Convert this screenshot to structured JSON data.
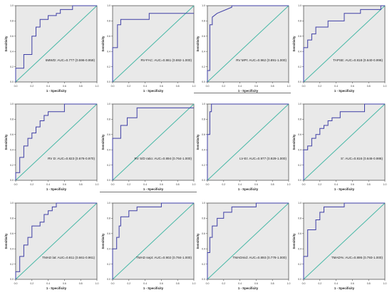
{
  "figure": {
    "x_axis_label": "1 - Specificity",
    "y_axis_label": "Sensitivity",
    "tick_labels": [
      "0.0",
      "0.2",
      "0.4",
      "0.6",
      "0.8",
      "1.0"
    ],
    "panel_background": "#e9e9e9",
    "roc_color": "#3f3fa6",
    "reference_color": "#47b8a6"
  },
  "chart_data": [
    {
      "type": "line",
      "label": "6MWD: AUC=0.777 (0.596-0.959)",
      "xlabel": "1 - Specificity",
      "ylabel": "Sensitivity",
      "xlim": [
        0,
        1
      ],
      "ylim": [
        0,
        1
      ],
      "reference_line": "diagonal",
      "series": [
        {
          "x": [
            0,
            0,
            0.1,
            0.1,
            0.2,
            0.2,
            0.25,
            0.25,
            0.3,
            0.3,
            0.4,
            0.4,
            0.5,
            0.5,
            0.55,
            0.55,
            0.7,
            0.7,
            0.9,
            0.95,
            1
          ],
          "y": [
            0,
            0.18,
            0.18,
            0.36,
            0.36,
            0.6,
            0.6,
            0.72,
            0.72,
            0.82,
            0.82,
            0.87,
            0.87,
            0.9,
            0.9,
            0.95,
            0.95,
            1,
            1,
            1,
            1
          ]
        }
      ]
    },
    {
      "type": "line",
      "label": "RV-FAC: AUC=0.861 (0.692-1.000)",
      "xlabel": "1 - Specificity",
      "ylabel": "Sensitivity",
      "xlim": [
        0,
        1
      ],
      "ylim": [
        0,
        1
      ],
      "reference_line": "diagonal",
      "series": [
        {
          "x": [
            0,
            0,
            0.06,
            0.06,
            0.1,
            0.1,
            0.45,
            0.45,
            1
          ],
          "y": [
            0,
            0.45,
            0.45,
            0.75,
            0.75,
            0.82,
            0.82,
            0.9,
            0.9
          ]
        }
      ]
    },
    {
      "type": "line",
      "label": "RV MPI: AUC=0.962 (0.891-1.000)",
      "xlabel": "1 - Specificity",
      "ylabel": "Sensitivity",
      "xlim": [
        0,
        1
      ],
      "ylim": [
        0,
        1
      ],
      "reference_line": "diagonal",
      "series": [
        {
          "x": [
            0,
            0,
            0.03,
            0.03,
            0.06,
            0.06,
            0.12,
            0.3,
            0.3,
            1
          ],
          "y": [
            0,
            0.15,
            0.15,
            0.75,
            0.75,
            0.85,
            0.9,
            0.98,
            1,
            1
          ]
        }
      ]
    },
    {
      "type": "line",
      "label": "TAPSE: AUC=0.818 (0.640-0.996)",
      "xlabel": "1 - Specificity",
      "ylabel": "Sensitivity",
      "xlim": [
        0,
        1
      ],
      "ylim": [
        0,
        1
      ],
      "reference_line": "diagonal",
      "series": [
        {
          "x": [
            0,
            0,
            0.05,
            0.05,
            0.1,
            0.1,
            0.15,
            0.15,
            0.3,
            0.3,
            0.5,
            0.5,
            0.7,
            0.7,
            0.95,
            0.95,
            1
          ],
          "y": [
            0,
            0.45,
            0.45,
            0.55,
            0.55,
            0.63,
            0.63,
            0.72,
            0.72,
            0.8,
            0.8,
            0.9,
            0.9,
            0.95,
            0.95,
            1,
            1
          ]
        }
      ]
    },
    {
      "type": "line",
      "label": "RV D: AUC=0.823 (0.676-0.970)",
      "xlabel": "1 - Specificity",
      "ylabel": "Sensitivity",
      "xlim": [
        0,
        1
      ],
      "ylim": [
        0,
        1
      ],
      "reference_line": "diagonal",
      "series": [
        {
          "x": [
            0,
            0,
            0.05,
            0.05,
            0.1,
            0.1,
            0.15,
            0.15,
            0.2,
            0.2,
            0.25,
            0.25,
            0.3,
            0.3,
            0.35,
            0.35,
            0.4,
            0.4,
            0.6,
            0.6,
            1
          ],
          "y": [
            0,
            0.1,
            0.1,
            0.3,
            0.3,
            0.45,
            0.45,
            0.55,
            0.55,
            0.62,
            0.62,
            0.7,
            0.7,
            0.78,
            0.78,
            0.85,
            0.85,
            0.9,
            0.9,
            1,
            1
          ]
        }
      ]
    },
    {
      "type": "line",
      "label": "RV S/D ratio: AUC=0.894 (0.764-1.000)",
      "xlabel": "1 - Specificity",
      "ylabel": "Sensitivity",
      "xlim": [
        0,
        1
      ],
      "ylim": [
        0,
        1
      ],
      "reference_line": "diagonal",
      "series": [
        {
          "x": [
            0,
            0,
            0.1,
            0.1,
            0.18,
            0.18,
            0.3,
            0.3,
            1
          ],
          "y": [
            0,
            0.55,
            0.55,
            0.72,
            0.72,
            0.82,
            0.82,
            0.95,
            0.95
          ]
        }
      ]
    },
    {
      "type": "line",
      "label": "LV-EI: AUC=0.977 (0.929-1.000)",
      "xlabel": "1 - Specificity",
      "ylabel": "Sensitivity",
      "xlim": [
        0,
        1
      ],
      "ylim": [
        0,
        1
      ],
      "reference_line": "diagonal",
      "series": [
        {
          "x": [
            0,
            0,
            0.03,
            0.03,
            0.05,
            0.05,
            1
          ],
          "y": [
            0,
            0.6,
            0.6,
            0.9,
            0.9,
            1,
            1
          ]
        }
      ]
    },
    {
      "type": "line",
      "label": "S': AUC=0.816 (0.646-0.986)",
      "xlabel": "1 - Specificity",
      "ylabel": "Sensitivity",
      "xlim": [
        0,
        1
      ],
      "ylim": [
        0,
        1
      ],
      "reference_line": "diagonal",
      "series": [
        {
          "x": [
            0,
            0,
            0.05,
            0.05,
            0.1,
            0.1,
            0.15,
            0.15,
            0.2,
            0.2,
            0.25,
            0.25,
            0.3,
            0.3,
            0.35,
            0.35,
            0.45,
            0.45,
            0.75,
            0.75,
            1
          ],
          "y": [
            0,
            0.4,
            0.4,
            0.45,
            0.45,
            0.55,
            0.55,
            0.6,
            0.6,
            0.68,
            0.68,
            0.72,
            0.72,
            0.78,
            0.78,
            0.82,
            0.82,
            0.9,
            0.9,
            1,
            1
          ]
        }
      ]
    },
    {
      "type": "line",
      "label": "TMAD lat: AUC=0.811 (0.661-0.961)",
      "xlabel": "1 - Specificity",
      "ylabel": "Sensitivity",
      "xlim": [
        0,
        1
      ],
      "ylim": [
        0,
        1
      ],
      "reference_line": "diagonal",
      "series": [
        {
          "x": [
            0,
            0,
            0.05,
            0.05,
            0.1,
            0.1,
            0.15,
            0.15,
            0.2,
            0.2,
            0.3,
            0.3,
            0.35,
            0.35,
            0.4,
            0.4,
            0.45,
            0.45,
            0.5,
            0.5,
            1
          ],
          "y": [
            0,
            0.1,
            0.1,
            0.3,
            0.3,
            0.45,
            0.45,
            0.55,
            0.55,
            0.7,
            0.7,
            0.75,
            0.75,
            0.85,
            0.85,
            0.9,
            0.9,
            0.95,
            0.95,
            1,
            1
          ]
        }
      ]
    },
    {
      "type": "line",
      "label": "TMAD sept: AUC=0.902 (0.784-1.000)",
      "xlabel": "1 - Specificity",
      "ylabel": "Sensitivity",
      "xlim": [
        0,
        1
      ],
      "ylim": [
        0,
        1
      ],
      "reference_line": "diagonal",
      "series": [
        {
          "x": [
            0,
            0,
            0.05,
            0.05,
            0.08,
            0.08,
            0.1,
            0.1,
            0.2,
            0.2,
            0.3,
            0.3,
            0.6,
            0.6,
            1
          ],
          "y": [
            0,
            0.4,
            0.4,
            0.55,
            0.55,
            0.7,
            0.7,
            0.82,
            0.82,
            0.9,
            0.9,
            0.95,
            0.95,
            1,
            1
          ]
        }
      ]
    },
    {
      "type": "line",
      "label": "TMADmid: AUC=0.893 (0.778-1.000)",
      "xlabel": "1 - Specificity",
      "ylabel": "Sensitivity",
      "xlim": [
        0,
        1
      ],
      "ylim": [
        0,
        1
      ],
      "reference_line": "diagonal",
      "series": [
        {
          "x": [
            0,
            0,
            0.03,
            0.03,
            0.06,
            0.06,
            0.12,
            0.12,
            0.2,
            0.2,
            0.3,
            0.3,
            0.6,
            0.6,
            1
          ],
          "y": [
            0,
            0.35,
            0.35,
            0.55,
            0.55,
            0.7,
            0.7,
            0.8,
            0.8,
            0.88,
            0.88,
            0.95,
            0.95,
            1,
            1
          ]
        }
      ]
    },
    {
      "type": "line",
      "label": "TMAD%: AUC=0.895 (0.793-1.000)",
      "xlabel": "1 - Specificity",
      "ylabel": "Sensitivity",
      "xlim": [
        0,
        1
      ],
      "ylim": [
        0,
        1
      ],
      "reference_line": "diagonal",
      "series": [
        {
          "x": [
            0,
            0,
            0.05,
            0.05,
            0.15,
            0.15,
            0.2,
            0.2,
            0.25,
            0.25,
            0.5,
            0.5,
            1
          ],
          "y": [
            0,
            0.3,
            0.3,
            0.65,
            0.65,
            0.78,
            0.78,
            0.88,
            0.88,
            0.95,
            0.95,
            1,
            1
          ]
        }
      ]
    }
  ]
}
